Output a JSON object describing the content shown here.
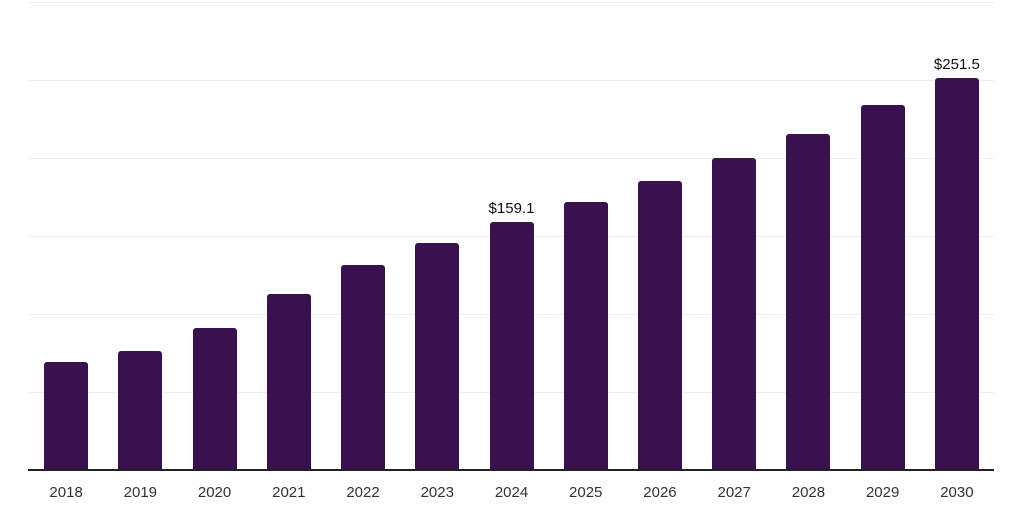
{
  "chart_data": {
    "type": "bar",
    "title": "",
    "xlabel": "",
    "ylabel": "",
    "categories": [
      "2018",
      "2019",
      "2020",
      "2021",
      "2022",
      "2023",
      "2024",
      "2025",
      "2026",
      "2027",
      "2028",
      "2029",
      "2030"
    ],
    "values": [
      69.3,
      76.3,
      91.0,
      112.8,
      131.2,
      145.5,
      159.1,
      171.6,
      185.5,
      200.3,
      215.6,
      234.0,
      251.5
    ],
    "data_labels": [
      "",
      "",
      "",
      "",
      "",
      "",
      "$159.1",
      "",
      "",
      "",
      "",
      "",
      "$251.5"
    ],
    "ylim": [
      0,
      300
    ],
    "gridline_step": 50,
    "grid": "horizontal-only",
    "legend": "none",
    "y_axis_tick_labels": "none",
    "colors": {
      "bar": "#39114E",
      "gridline": "#F0F0F0",
      "axis_line": "#222222",
      "data_label_text": "#111111",
      "tick_label_text": "#333333",
      "background": "#FFFFFF"
    }
  }
}
